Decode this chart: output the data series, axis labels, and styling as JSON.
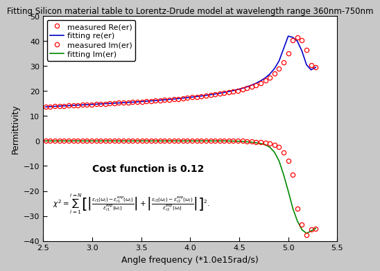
{
  "title": "Fitting Silicon material table to Lorentz-Drude model at wavelength range 360nm-750nm",
  "xlabel": "Angle frequency (*1.0e15rad/s)",
  "ylabel": "Permittivity",
  "xlim": [
    2.5,
    5.5
  ],
  "ylim": [
    -40,
    50
  ],
  "xticks": [
    2.5,
    3.0,
    3.5,
    4.0,
    4.5,
    5.0,
    5.5
  ],
  "yticks": [
    -40,
    -30,
    -20,
    -10,
    0,
    10,
    20,
    30,
    40,
    50
  ],
  "background_color": "#c8c8c8",
  "plot_bg_color": "#ffffff",
  "legend_labels": [
    "measured Re(er)",
    "fitting re(er)",
    "measured Im(er)",
    "fitting Im(er)"
  ],
  "cost_text": "Cost function is 0.12",
  "re_measured_x": [
    2.527,
    2.573,
    2.62,
    2.667,
    2.713,
    2.76,
    2.807,
    2.853,
    2.9,
    2.947,
    2.993,
    3.04,
    3.087,
    3.133,
    3.18,
    3.227,
    3.273,
    3.32,
    3.367,
    3.413,
    3.46,
    3.507,
    3.553,
    3.6,
    3.647,
    3.693,
    3.74,
    3.787,
    3.833,
    3.88,
    3.927,
    3.973,
    4.02,
    4.067,
    4.113,
    4.16,
    4.207,
    4.253,
    4.3,
    4.347,
    4.393,
    4.44,
    4.487,
    4.533,
    4.58,
    4.627,
    4.673,
    4.72,
    4.767,
    4.813,
    4.86,
    4.907,
    4.953,
    5.0,
    5.047,
    5.093,
    5.14,
    5.187,
    5.233,
    5.28
  ],
  "re_measured_y": [
    13.7,
    13.8,
    13.9,
    14.0,
    14.1,
    14.2,
    14.3,
    14.4,
    14.45,
    14.55,
    14.65,
    14.75,
    14.85,
    14.95,
    15.05,
    15.15,
    15.25,
    15.35,
    15.45,
    15.55,
    15.65,
    15.8,
    15.9,
    16.0,
    16.15,
    16.3,
    16.45,
    16.6,
    16.75,
    16.9,
    17.1,
    17.3,
    17.5,
    17.7,
    17.9,
    18.1,
    18.4,
    18.65,
    18.9,
    19.2,
    19.5,
    19.85,
    20.2,
    20.6,
    21.1,
    21.7,
    22.4,
    23.2,
    24.2,
    25.5,
    27.0,
    29.0,
    31.5,
    35.0,
    40.5,
    41.5,
    40.5,
    36.5,
    30.5,
    29.5
  ],
  "im_measured_x": [
    2.527,
    2.573,
    2.62,
    2.667,
    2.713,
    2.76,
    2.807,
    2.853,
    2.9,
    2.947,
    2.993,
    3.04,
    3.087,
    3.133,
    3.18,
    3.227,
    3.273,
    3.32,
    3.367,
    3.413,
    3.46,
    3.507,
    3.553,
    3.6,
    3.647,
    3.693,
    3.74,
    3.787,
    3.833,
    3.88,
    3.927,
    3.973,
    4.02,
    4.067,
    4.113,
    4.16,
    4.207,
    4.253,
    4.3,
    4.347,
    4.393,
    4.44,
    4.487,
    4.533,
    4.58,
    4.627,
    4.673,
    4.72,
    4.767,
    4.813,
    4.86,
    4.907,
    4.953,
    5.0,
    5.047,
    5.093,
    5.14,
    5.187,
    5.233,
    5.28
  ],
  "im_measured_y": [
    0.05,
    0.05,
    0.05,
    0.05,
    0.05,
    0.05,
    0.05,
    0.05,
    0.05,
    0.05,
    0.05,
    0.05,
    0.05,
    0.05,
    0.05,
    0.05,
    0.05,
    0.05,
    0.05,
    0.05,
    0.05,
    0.05,
    0.05,
    0.05,
    0.05,
    0.05,
    0.05,
    0.05,
    0.05,
    0.05,
    0.05,
    0.05,
    0.05,
    0.05,
    0.05,
    0.05,
    0.05,
    0.05,
    0.05,
    0.05,
    0.05,
    0.05,
    0.05,
    0.05,
    -0.1,
    -0.2,
    -0.3,
    -0.5,
    -0.7,
    -1.0,
    -1.5,
    -2.5,
    -4.5,
    -8.0,
    -13.5,
    -27.0,
    -33.5,
    -37.5,
    -35.5,
    -35.0
  ],
  "re_fit_x": [
    2.527,
    2.573,
    2.62,
    2.667,
    2.713,
    2.76,
    2.807,
    2.853,
    2.9,
    2.947,
    2.993,
    3.04,
    3.087,
    3.133,
    3.18,
    3.227,
    3.273,
    3.32,
    3.367,
    3.413,
    3.46,
    3.507,
    3.553,
    3.6,
    3.647,
    3.693,
    3.74,
    3.787,
    3.833,
    3.88,
    3.927,
    3.973,
    4.02,
    4.067,
    4.113,
    4.16,
    4.207,
    4.253,
    4.3,
    4.347,
    4.393,
    4.44,
    4.487,
    4.533,
    4.58,
    4.627,
    4.673,
    4.72,
    4.767,
    4.813,
    4.86,
    4.907,
    4.953,
    5.0,
    5.047,
    5.093,
    5.14,
    5.187,
    5.233,
    5.28
  ],
  "re_fit_y": [
    13.65,
    13.78,
    13.88,
    13.98,
    14.08,
    14.17,
    14.27,
    14.37,
    14.47,
    14.56,
    14.66,
    14.76,
    14.86,
    14.96,
    15.06,
    15.16,
    15.26,
    15.36,
    15.46,
    15.57,
    15.68,
    15.82,
    15.93,
    16.06,
    16.2,
    16.35,
    16.5,
    16.65,
    16.82,
    16.99,
    17.18,
    17.38,
    17.59,
    17.8,
    18.03,
    18.27,
    18.54,
    18.82,
    19.12,
    19.44,
    19.8,
    20.2,
    20.64,
    21.14,
    21.71,
    22.38,
    23.17,
    24.12,
    25.3,
    26.85,
    29.0,
    32.1,
    37.0,
    42.0,
    41.5,
    40.0,
    36.0,
    30.5,
    28.5,
    29.5
  ],
  "im_fit_x": [
    2.527,
    2.573,
    2.62,
    2.667,
    2.713,
    2.76,
    2.807,
    2.853,
    2.9,
    2.947,
    2.993,
    3.04,
    3.087,
    3.133,
    3.18,
    3.227,
    3.273,
    3.32,
    3.367,
    3.413,
    3.46,
    3.507,
    3.553,
    3.6,
    3.647,
    3.693,
    3.74,
    3.787,
    3.833,
    3.88,
    3.927,
    3.973,
    4.02,
    4.067,
    4.113,
    4.16,
    4.207,
    4.253,
    4.3,
    4.347,
    4.393,
    4.44,
    4.487,
    4.533,
    4.58,
    4.627,
    4.673,
    4.72,
    4.767,
    4.813,
    4.86,
    4.907,
    4.953,
    5.0,
    5.047,
    5.093,
    5.14,
    5.187,
    5.233,
    5.28
  ],
  "im_fit_y": [
    0.05,
    0.05,
    0.05,
    0.05,
    0.05,
    0.05,
    0.05,
    0.05,
    0.05,
    0.05,
    0.05,
    0.05,
    0.05,
    0.05,
    0.05,
    0.05,
    0.05,
    0.05,
    0.05,
    0.05,
    0.05,
    0.05,
    0.05,
    0.05,
    0.05,
    0.05,
    0.05,
    0.05,
    0.05,
    0.05,
    0.05,
    0.05,
    0.05,
    0.05,
    0.05,
    0.05,
    0.05,
    0.05,
    0.05,
    0.05,
    0.0,
    -0.05,
    -0.1,
    -0.2,
    -0.3,
    -0.5,
    -0.7,
    -1.0,
    -1.5,
    -2.5,
    -4.5,
    -8.0,
    -13.5,
    -20.0,
    -27.0,
    -32.0,
    -35.5,
    -37.0,
    -36.0,
    -35.0
  ],
  "re_color": "#0000cc",
  "im_color": "#008800",
  "meas_color": "#ff0000",
  "marker_size": 4.5,
  "line_width": 1.2,
  "title_fontsize": 8.5,
  "axis_label_fontsize": 9,
  "tick_fontsize": 8,
  "legend_fontsize": 8,
  "annotation_fontsize": 10,
  "formula_fontsize": 7.5,
  "cost_x": 3.0,
  "cost_y": -12,
  "formula_x": 2.6,
  "formula_y": -26
}
